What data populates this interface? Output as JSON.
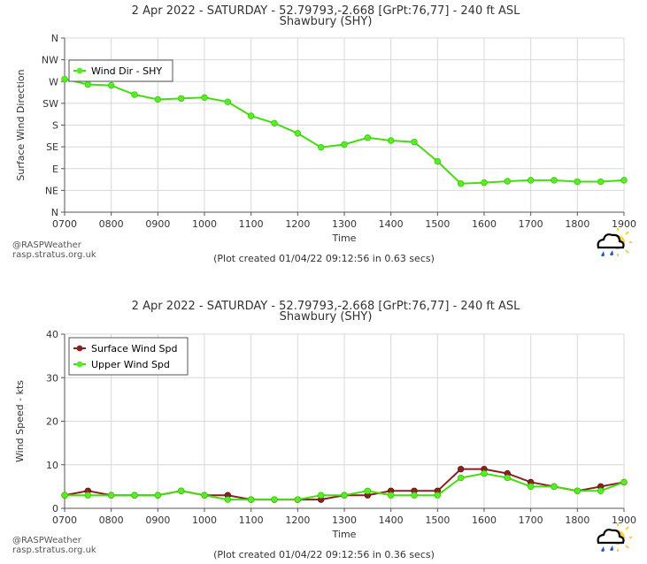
{
  "charts": {
    "wind_dir": {
      "title_line1": "2 Apr 2022 - SATURDAY - 52.79793,-2.668 [GrPt:76,77]  - 240 ft ASL",
      "title_line2": "Shawbury (SHY)",
      "created": "(Plot created 01/04/22 09:12:56 in 0.63 secs)"
    },
    "wind_spd": {
      "title_line1": "2 Apr 2022 - SATURDAY - 52.79793,-2.668 [GrPt:76,77]  - 240 ft ASL",
      "title_line2": "Shawbury (SHY)",
      "created": "(Plot created 01/04/22 09:12:56 in 0.36 secs)"
    }
  },
  "credit": {
    "line1": "@RASPWeather",
    "line2": "rasp.stratus.org.uk",
    "logo_icon": "weather-cloud-sun-icon"
  },
  "colors": {
    "series_green": "#55ee22",
    "series_green_line": "#44dd11",
    "series_maroon": "#882222",
    "grid": "#d8d8d8",
    "axis": "#555555"
  },
  "chart_data": [
    {
      "type": "line",
      "title": "2 Apr 2022 - SATURDAY - 52.79793,-2.668 [GrPt:76,77]  - 240 ft ASL",
      "subtitle": "Shawbury (SHY)",
      "xlabel": "Time",
      "ylabel": "Surface Wind Direction",
      "x": [
        "0700",
        "0730",
        "0800",
        "0830",
        "0900",
        "0930",
        "1000",
        "1030",
        "1100",
        "1130",
        "1200",
        "1230",
        "1300",
        "1330",
        "1400",
        "1430",
        "1500",
        "1530",
        "1600",
        "1630",
        "1700",
        "1730",
        "1800",
        "1830",
        "1900"
      ],
      "x_tick_labels": [
        "0700",
        "0800",
        "0900",
        "1000",
        "1100",
        "1200",
        "1300",
        "1400",
        "1500",
        "1600",
        "1700",
        "1800",
        "1900"
      ],
      "y_tick_labels": [
        "N",
        "NE",
        "E",
        "SE",
        "S",
        "SW",
        "W",
        "NW",
        "N"
      ],
      "y_tick_values": [
        0,
        45,
        90,
        135,
        180,
        225,
        270,
        315,
        360
      ],
      "ylim": [
        0,
        360
      ],
      "grid": true,
      "legend_position": "top-left",
      "series": [
        {
          "name": "Wind Dir - SHY",
          "color": "#55ee22",
          "values": [
            275,
            264,
            262,
            243,
            233,
            235,
            237,
            228,
            199,
            184,
            163,
            134,
            140,
            154,
            148,
            145,
            105,
            59,
            61,
            64,
            66,
            66,
            63,
            63,
            66
          ]
        }
      ]
    },
    {
      "type": "line",
      "title": "2 Apr 2022 - SATURDAY - 52.79793,-2.668 [GrPt:76,77]  - 240 ft ASL",
      "subtitle": "Shawbury (SHY)",
      "xlabel": "Time",
      "ylabel": "Wind Speed - kts",
      "x": [
        "0700",
        "0730",
        "0800",
        "0830",
        "0900",
        "0930",
        "1000",
        "1030",
        "1100",
        "1130",
        "1200",
        "1230",
        "1300",
        "1330",
        "1400",
        "1430",
        "1500",
        "1530",
        "1600",
        "1630",
        "1700",
        "1730",
        "1800",
        "1830",
        "1900"
      ],
      "x_tick_labels": [
        "0700",
        "0800",
        "0900",
        "1000",
        "1100",
        "1200",
        "1300",
        "1400",
        "1500",
        "1600",
        "1700",
        "1800",
        "1900"
      ],
      "y_tick_labels": [
        "0",
        "10",
        "20",
        "30",
        "40"
      ],
      "y_tick_values": [
        0,
        10,
        20,
        30,
        40
      ],
      "ylim": [
        0,
        40
      ],
      "grid": true,
      "legend_position": "top-left",
      "series": [
        {
          "name": "Surface Wind Spd",
          "color": "#882222",
          "values": [
            3,
            4,
            3,
            3,
            3,
            4,
            3,
            3,
            2,
            2,
            2,
            2,
            3,
            3,
            4,
            4,
            4,
            9,
            9,
            8,
            6,
            5,
            4,
            5,
            6
          ]
        },
        {
          "name": "Upper Wind Spd",
          "color": "#55ee22",
          "values": [
            3,
            3,
            3,
            3,
            3,
            4,
            3,
            2,
            2,
            2,
            2,
            3,
            3,
            4,
            3,
            3,
            3,
            7,
            8,
            7,
            5,
            5,
            4,
            4,
            6
          ]
        }
      ]
    }
  ]
}
